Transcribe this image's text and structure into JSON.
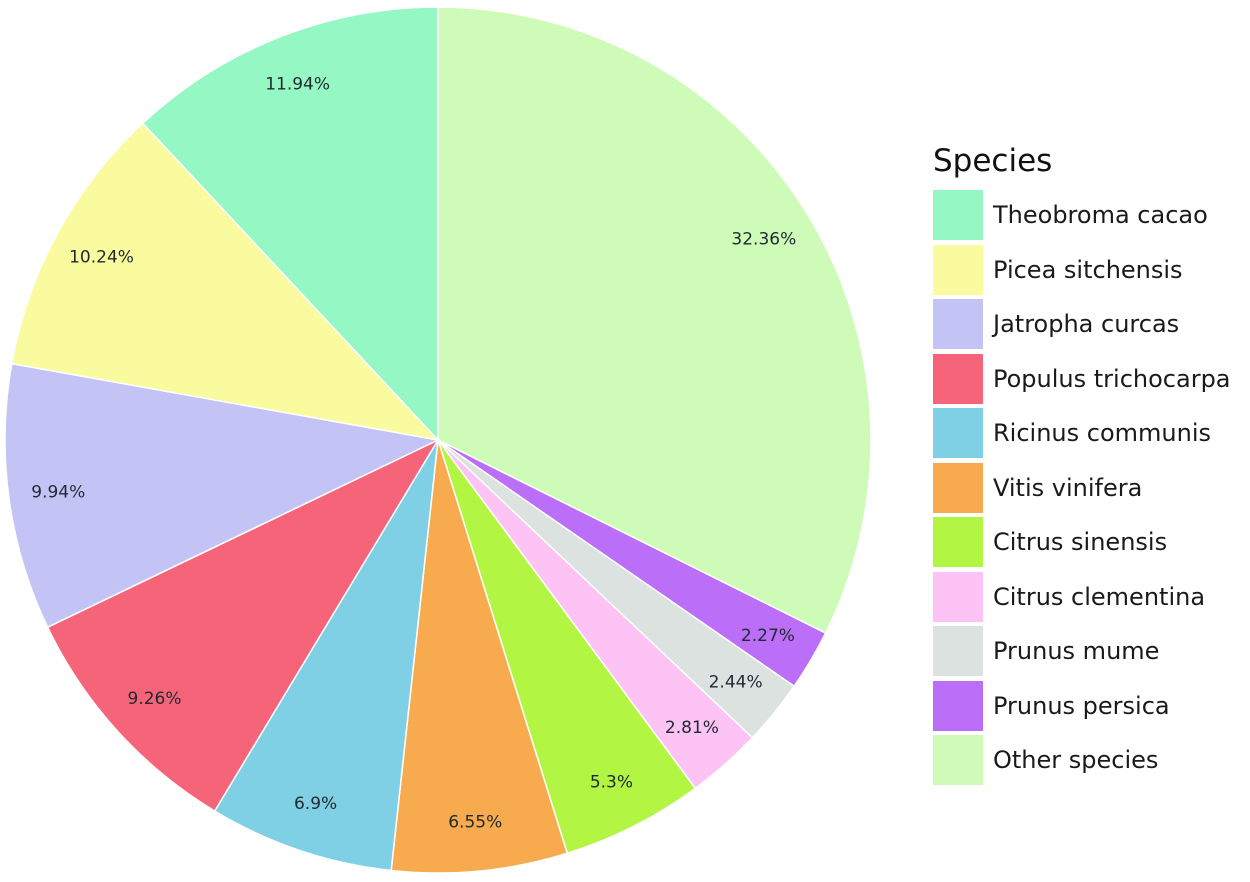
{
  "chart_data": {
    "type": "pie",
    "legend_title": "Species",
    "legend_position": "right",
    "start_angle": "12 o'clock, clockwise",
    "slices": [
      {
        "name": "Other species",
        "value": 32.36,
        "label": "32.36%",
        "color": "#CFFBB8"
      },
      {
        "name": "Prunus persica",
        "value": 2.27,
        "label": "2.27%",
        "color": "#BB6EF7"
      },
      {
        "name": "Prunus mume",
        "value": 2.44,
        "label": "2.44%",
        "color": "#DCE2DF"
      },
      {
        "name": "Citrus clementina",
        "value": 2.81,
        "label": "2.81%",
        "color": "#FDC3F5"
      },
      {
        "name": "Citrus sinensis",
        "value": 5.3,
        "label": "5.3%",
        "color": "#B2F542"
      },
      {
        "name": "Vitis vinifera",
        "value": 6.55,
        "label": "6.55%",
        "color": "#F8AA4E"
      },
      {
        "name": "Ricinus communis",
        "value": 6.9,
        "label": "6.9%",
        "color": "#7FCFE5"
      },
      {
        "name": "Populus trichocarpa",
        "value": 9.26,
        "label": "9.26%",
        "color": "#F6647A"
      },
      {
        "name": "Jatropha curcas",
        "value": 9.94,
        "label": "9.94%",
        "color": "#C3C4F5"
      },
      {
        "name": "Picea sitchensis",
        "value": 10.24,
        "label": "10.24%",
        "color": "#FAFA9F"
      },
      {
        "name": "Theobroma cacao",
        "value": 11.94,
        "label": "11.94%",
        "color": "#95F7C3"
      }
    ],
    "legend_order": [
      "Theobroma cacao",
      "Picea sitchensis",
      "Jatropha curcas",
      "Populus trichocarpa",
      "Ricinus communis",
      "Vitis vinifera",
      "Citrus sinensis",
      "Citrus clementina",
      "Prunus mume",
      "Prunus persica",
      "Other species"
    ]
  }
}
